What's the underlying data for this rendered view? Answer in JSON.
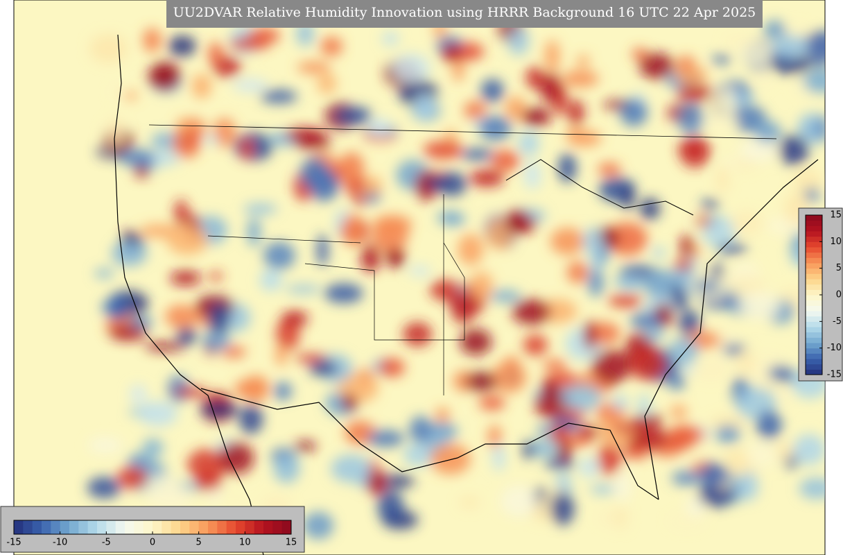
{
  "title": "UU2DVAR Relative Humidity Innovation using HRRR Background 16 UTC 22 Apr 2025",
  "colorbar_bottom": {
    "range": [
      -15,
      15
    ],
    "ticks": [
      -15,
      -10,
      -5,
      0,
      5,
      10,
      15
    ]
  },
  "colorbar_right": {
    "range": [
      -15,
      15
    ],
    "ticks": [
      -15,
      -10,
      -5,
      0,
      5,
      10,
      15
    ]
  },
  "colormap": [
    "#23307a",
    "#3a62ad",
    "#74a9d0",
    "#b5dbea",
    "#f4f9f0",
    "#fdf6c8",
    "#fdd48a",
    "#f8985a",
    "#e6492f",
    "#b4121f",
    "#8a0a1e"
  ]
}
